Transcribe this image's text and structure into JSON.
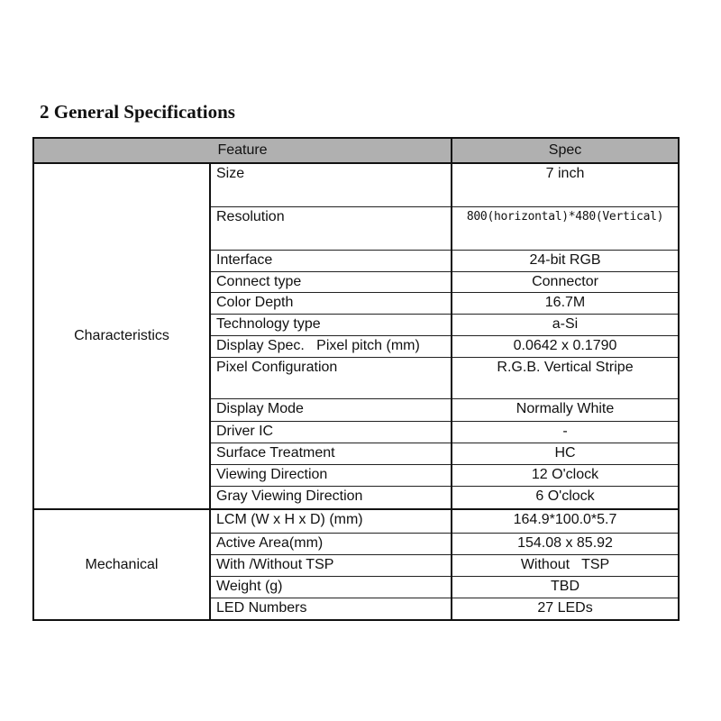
{
  "heading": "2 General Specifications",
  "table": {
    "headers": {
      "feature": "Feature",
      "spec": "Spec"
    },
    "groups": [
      {
        "label": "Characteristics",
        "rows": [
          {
            "feature": "Size",
            "spec": "7 inch"
          },
          {
            "feature": "Resolution",
            "spec": "800(horizontal)*480(Vertical)"
          },
          {
            "feature": "Interface",
            "spec": "24-bit RGB"
          },
          {
            "feature": "Connect type",
            "spec": "Connector"
          },
          {
            "feature": "Color Depth",
            "spec": "16.7M"
          },
          {
            "feature": "Technology type",
            "spec": "a-Si"
          },
          {
            "feature": "Display Spec.   Pixel pitch (mm)",
            "spec": "0.0642 x 0.1790"
          },
          {
            "feature": "Pixel Configuration",
            "spec": "R.G.B. Vertical Stripe"
          },
          {
            "feature": "Display Mode",
            "spec": "Normally White"
          },
          {
            "feature": "Driver IC",
            "spec": "-"
          },
          {
            "feature": "Surface Treatment",
            "spec": "HC"
          },
          {
            "feature": "Viewing Direction",
            "spec": "12 O'clock"
          },
          {
            "feature": "Gray Viewing Direction",
            "spec": "6 O'clock"
          }
        ]
      },
      {
        "label": "Mechanical",
        "rows": [
          {
            "feature": "LCM (W x H x D) (mm)",
            "spec": "164.9*100.0*5.7"
          },
          {
            "feature": "Active Area(mm)",
            "spec": "154.08 x 85.92"
          },
          {
            "feature": "With /Without TSP",
            "spec": "Without   TSP"
          },
          {
            "feature": "Weight (g)",
            "spec": "TBD"
          },
          {
            "feature": "LED Numbers",
            "spec": "27 LEDs"
          }
        ]
      }
    ]
  }
}
